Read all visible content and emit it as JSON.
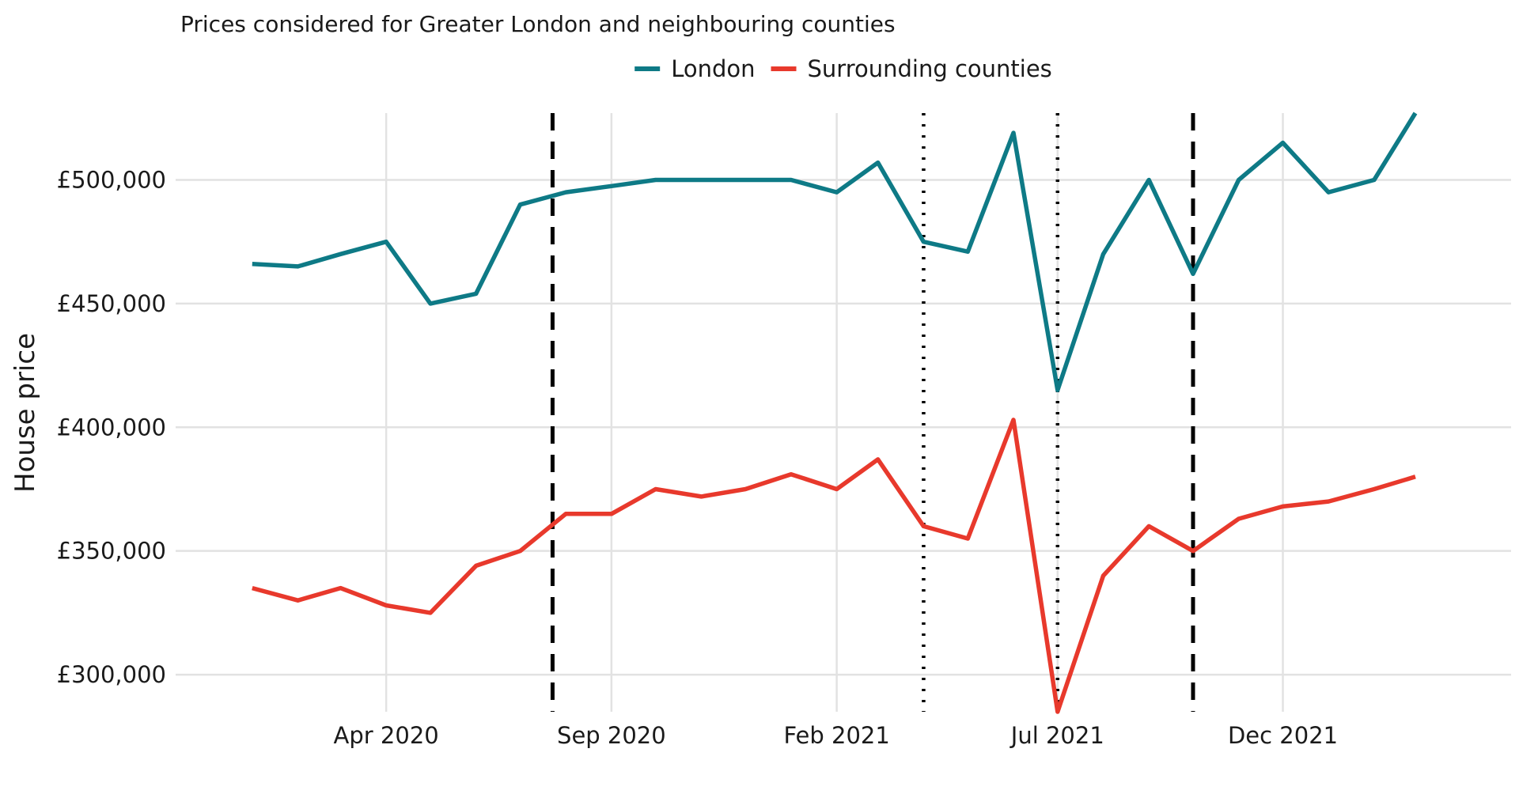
{
  "chart_data": {
    "type": "line",
    "subtitle": "Prices considered for Greater London and neighbouring counties",
    "ylabel": "House price",
    "xlabel": "",
    "x": [
      "2020-01",
      "2020-02",
      "2020-03",
      "2020-04",
      "2020-05",
      "2020-06",
      "2020-07",
      "2020-08",
      "2020-09",
      "2020-10",
      "2020-11",
      "2020-12",
      "2021-01",
      "2021-02",
      "2021-03",
      "2021-04",
      "2021-05",
      "2021-06",
      "2021-07",
      "2021-08",
      "2021-09",
      "2021-10",
      "2021-11",
      "2021-12",
      "2022-01",
      "2022-02",
      "2022-03"
    ],
    "x_ticks": [
      {
        "date": "2020-04",
        "label": "Apr 2020"
      },
      {
        "date": "2020-09",
        "label": "Sep 2020"
      },
      {
        "date": "2021-02",
        "label": "Feb 2021"
      },
      {
        "date": "2021-07",
        "label": "Jul 2021"
      },
      {
        "date": "2021-12",
        "label": "Dec 2021"
      }
    ],
    "y_ticks": [
      {
        "value": 300000,
        "label": "£300,000"
      },
      {
        "value": 350000,
        "label": "£350,000"
      },
      {
        "value": 400000,
        "label": "£400,000"
      },
      {
        "value": 450000,
        "label": "£450,000"
      },
      {
        "value": 500000,
        "label": "£500,000"
      }
    ],
    "ylim": [
      285000,
      527000
    ],
    "xlim": [
      "2019-11-10",
      "2022-05-05"
    ],
    "grid": true,
    "legend_position": "top",
    "series": [
      {
        "name": "London",
        "color": "#0e7a86",
        "values": [
          466000,
          465000,
          470000,
          475000,
          450000,
          454000,
          490000,
          495000,
          497500,
          500000,
          500000,
          500000,
          500000,
          495000,
          507000,
          475000,
          471000,
          519000,
          415000,
          470000,
          500000,
          462000,
          500000,
          515000,
          495000,
          500000,
          527000
        ]
      },
      {
        "name": "Surrounding counties",
        "color": "#e8392c",
        "values": [
          335000,
          330000,
          335000,
          328000,
          325000,
          344000,
          350000,
          365000,
          365000,
          375000,
          372000,
          375000,
          381000,
          375000,
          387000,
          360000,
          355000,
          403000,
          285000,
          340000,
          360000,
          350000,
          363000,
          368000,
          370000,
          375000,
          380000
        ]
      }
    ],
    "reference_lines": [
      {
        "date": "2020-07-23",
        "style": "dashed"
      },
      {
        "date": "2021-04-01",
        "style": "dotted"
      },
      {
        "date": "2021-07-01",
        "style": "dotted"
      },
      {
        "date": "2021-10-01",
        "style": "dashed"
      }
    ]
  }
}
